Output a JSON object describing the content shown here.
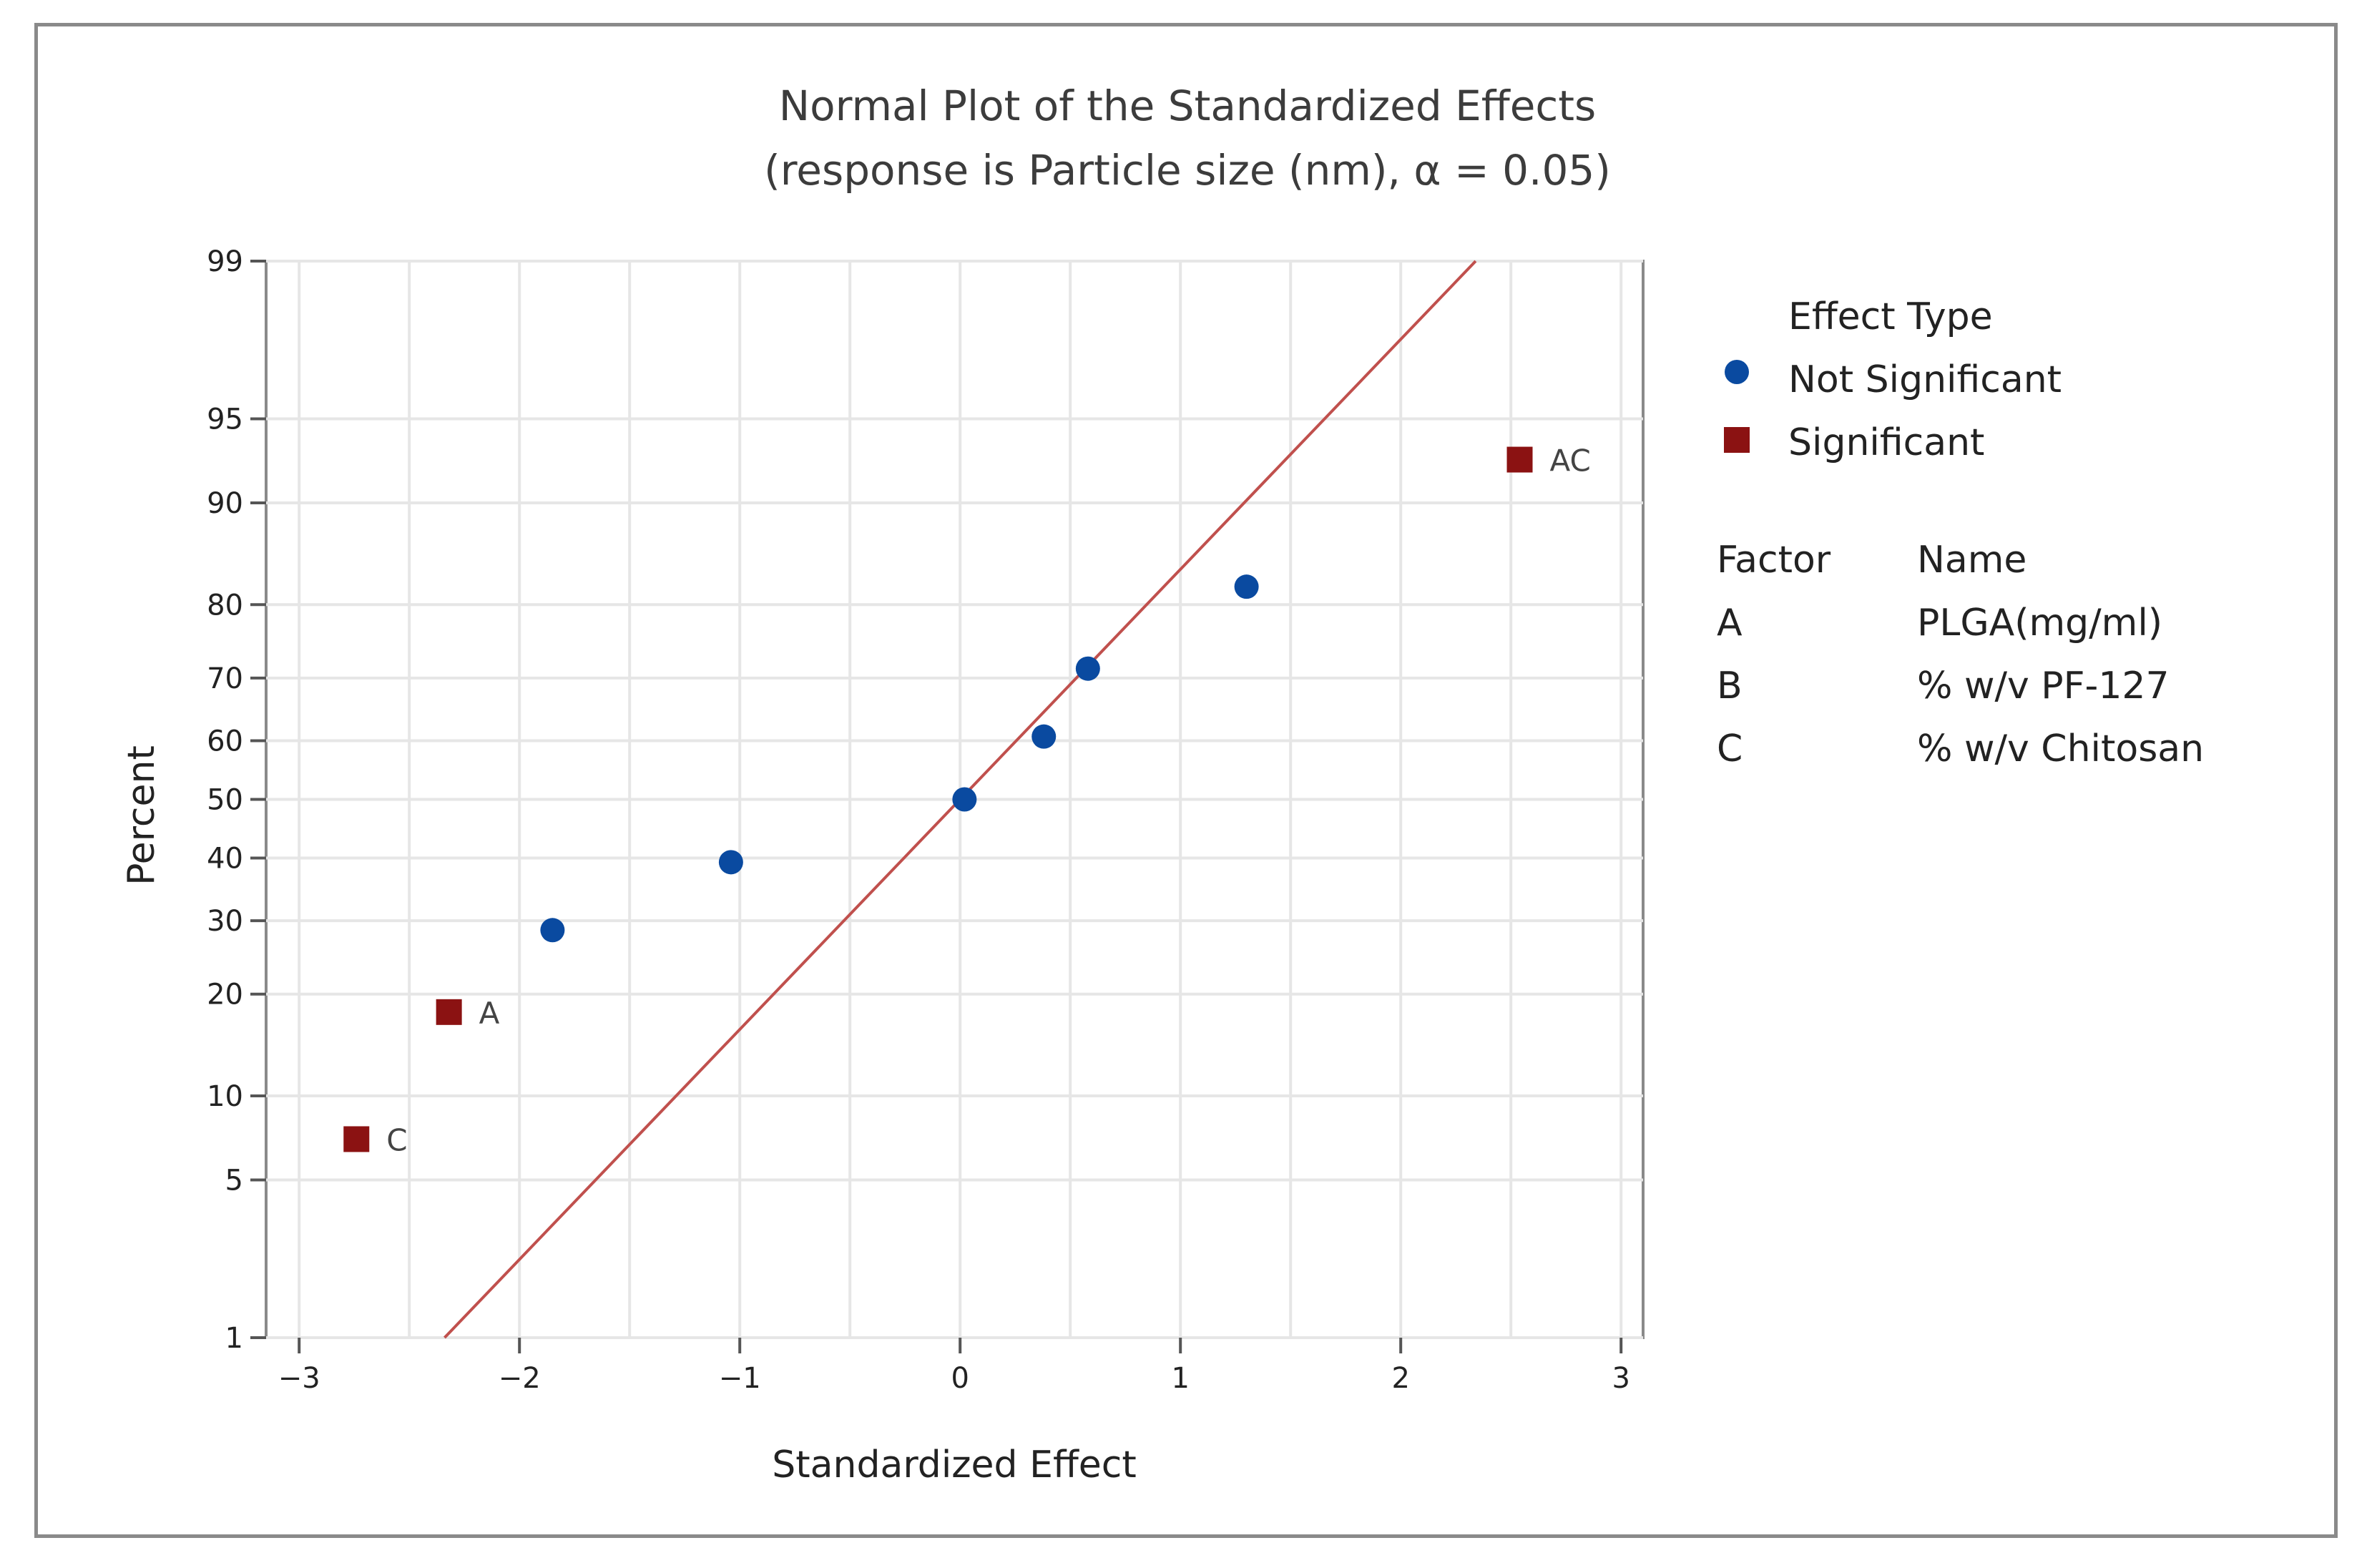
{
  "chart_data": {
    "type": "scatter",
    "title": "Normal Plot of the Standardized Effects",
    "subtitle": "(response is Particle size (nm), α = 0.05)",
    "xlabel": "Standardized Effect",
    "ylabel": "Percent",
    "xlim": [
      -3.15,
      3.1
    ],
    "ylim": [
      1,
      99
    ],
    "y_scale": "normal-probability",
    "x_ticks": [
      -3,
      -2,
      -1,
      0,
      1,
      2,
      3
    ],
    "x_tick_labels": [
      "−3",
      "−2",
      "−1",
      "0",
      "1",
      "2",
      "3"
    ],
    "y_ticks": [
      1,
      5,
      10,
      20,
      30,
      40,
      50,
      60,
      70,
      80,
      90,
      95,
      99
    ],
    "y_tick_labels": [
      "1",
      "5",
      "10",
      "20",
      "30",
      "40",
      "50",
      "60",
      "70",
      "80",
      "90",
      "95",
      "99"
    ],
    "grid": true,
    "series": [
      {
        "name": "Not Significant",
        "color": "#0a4aa0",
        "marker": "circle",
        "points": [
          {
            "x": -1.85,
            "y": 28.6,
            "label": ""
          },
          {
            "x": -1.04,
            "y": 39.3,
            "label": ""
          },
          {
            "x": 0.02,
            "y": 50.0,
            "label": ""
          },
          {
            "x": 0.38,
            "y": 60.7,
            "label": ""
          },
          {
            "x": 0.58,
            "y": 71.4,
            "label": ""
          },
          {
            "x": 1.3,
            "y": 82.1,
            "label": ""
          }
        ]
      },
      {
        "name": "Significant",
        "color": "#8b1212",
        "marker": "square",
        "points": [
          {
            "x": -2.74,
            "y": 7.1,
            "label": "C"
          },
          {
            "x": -2.32,
            "y": 17.9,
            "label": "A"
          },
          {
            "x": 2.54,
            "y": 92.9,
            "label": "AC"
          }
        ]
      }
    ],
    "reference_line": {
      "color": "#c0504d",
      "x_at_1pct": -2.34,
      "x_at_99pct": 2.34
    },
    "legend": {
      "title": "Effect Type",
      "entries": [
        "Not Significant",
        "Significant"
      ],
      "placement": "right"
    },
    "factor_table": {
      "headers": [
        "Factor",
        "Name"
      ],
      "rows": [
        {
          "factor": "A",
          "name": "PLGA(mg/ml)"
        },
        {
          "factor": "B",
          "name": "% w/v PF-127"
        },
        {
          "factor": "C",
          "name": "% w/v Chitosan"
        }
      ]
    }
  }
}
